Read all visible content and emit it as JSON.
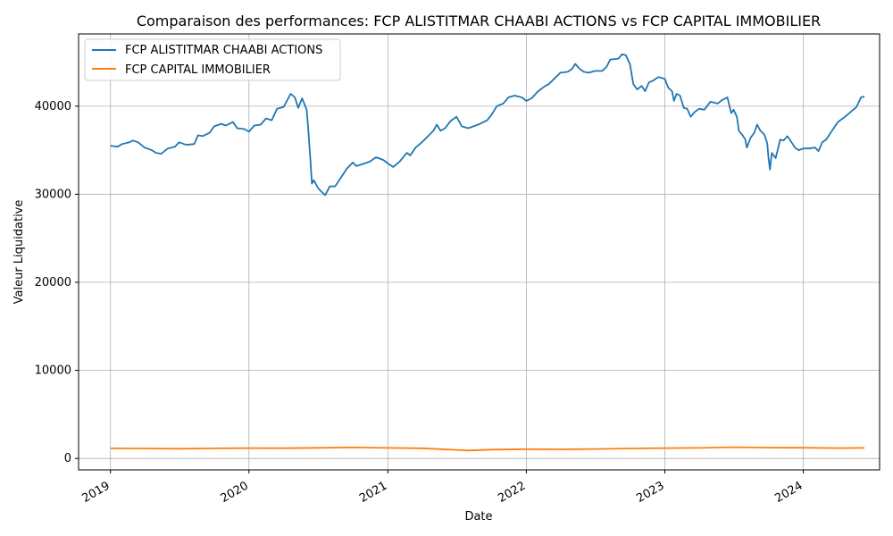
{
  "chart_data": {
    "type": "line",
    "title": "Comparaison des performances: FCP ALISTITMAR CHAABI ACTIONS vs FCP CAPITAL IMMOBILIER",
    "xlabel": "Date",
    "ylabel": "Valeur Liquidative",
    "xlim": [
      "2018-10-09",
      "2024-07-20"
    ],
    "ylim": [
      -1300,
      48200
    ],
    "x_ticks": [
      "2019",
      "2020",
      "2021",
      "2022",
      "2023",
      "2024"
    ],
    "y_ticks": [
      0,
      10000,
      20000,
      30000,
      40000
    ],
    "grid": true,
    "legend_position": "top-left",
    "series": [
      {
        "name": "FCP ALISTITMAR CHAABI ACTIONS",
        "color": "#1f77b4",
        "points": [
          [
            "2019-01-01",
            35500
          ],
          [
            "2019-01-20",
            35400
          ],
          [
            "2019-02-01",
            35700
          ],
          [
            "2019-02-20",
            35900
          ],
          [
            "2019-03-01",
            36100
          ],
          [
            "2019-03-15",
            35900
          ],
          [
            "2019-04-01",
            35300
          ],
          [
            "2019-04-20",
            35000
          ],
          [
            "2019-05-01",
            34700
          ],
          [
            "2019-05-15",
            34600
          ],
          [
            "2019-06-01",
            35200
          ],
          [
            "2019-06-20",
            35400
          ],
          [
            "2019-07-01",
            35900
          ],
          [
            "2019-07-20",
            35600
          ],
          [
            "2019-08-10",
            35700
          ],
          [
            "2019-08-20",
            36700
          ],
          [
            "2019-09-01",
            36600
          ],
          [
            "2019-09-20",
            37000
          ],
          [
            "2019-10-01",
            37700
          ],
          [
            "2019-10-20",
            38000
          ],
          [
            "2019-11-01",
            37800
          ],
          [
            "2019-11-20",
            38200
          ],
          [
            "2019-12-01",
            37500
          ],
          [
            "2019-12-20",
            37400
          ],
          [
            "2020-01-01",
            37100
          ],
          [
            "2020-01-15",
            37800
          ],
          [
            "2020-02-01",
            37900
          ],
          [
            "2020-02-15",
            38600
          ],
          [
            "2020-03-01",
            38400
          ],
          [
            "2020-03-15",
            39700
          ],
          [
            "2020-04-01",
            39900
          ],
          [
            "2020-04-10",
            40600
          ],
          [
            "2020-04-20",
            41400
          ],
          [
            "2020-05-01",
            41000
          ],
          [
            "2020-05-10",
            39800
          ],
          [
            "2020-05-20",
            40900
          ],
          [
            "2020-06-01",
            39600
          ],
          [
            "2020-06-05",
            37500
          ],
          [
            "2020-06-10",
            34500
          ],
          [
            "2020-06-15",
            31200
          ],
          [
            "2020-06-20",
            31600
          ],
          [
            "2020-07-01",
            30700
          ],
          [
            "2020-07-10",
            30300
          ],
          [
            "2020-07-20",
            29900
          ],
          [
            "2020-08-01",
            30900
          ],
          [
            "2020-08-15",
            30900
          ],
          [
            "2020-09-01",
            32000
          ],
          [
            "2020-09-15",
            32900
          ],
          [
            "2020-10-01",
            33600
          ],
          [
            "2020-10-10",
            33200
          ],
          [
            "2020-11-01",
            33500
          ],
          [
            "2020-11-15",
            33700
          ],
          [
            "2020-12-01",
            34200
          ],
          [
            "2020-12-20",
            33900
          ],
          [
            "2021-01-01",
            33500
          ],
          [
            "2021-01-15",
            33100
          ],
          [
            "2021-02-01",
            33700
          ],
          [
            "2021-02-20",
            34700
          ],
          [
            "2021-03-01",
            34400
          ],
          [
            "2021-03-15",
            35300
          ],
          [
            "2021-04-01",
            35900
          ],
          [
            "2021-04-15",
            36500
          ],
          [
            "2021-05-01",
            37200
          ],
          [
            "2021-05-10",
            37900
          ],
          [
            "2021-05-20",
            37200
          ],
          [
            "2021-06-01",
            37500
          ],
          [
            "2021-06-15",
            38300
          ],
          [
            "2021-07-01",
            38800
          ],
          [
            "2021-07-15",
            37700
          ],
          [
            "2021-08-01",
            37500
          ],
          [
            "2021-08-20",
            37800
          ],
          [
            "2021-09-01",
            38000
          ],
          [
            "2021-09-20",
            38400
          ],
          [
            "2021-10-01",
            39000
          ],
          [
            "2021-10-15",
            40000
          ],
          [
            "2021-11-01",
            40300
          ],
          [
            "2021-11-15",
            41000
          ],
          [
            "2021-12-01",
            41200
          ],
          [
            "2021-12-20",
            41000
          ],
          [
            "2022-01-01",
            40600
          ],
          [
            "2022-01-15",
            40900
          ],
          [
            "2022-02-01",
            41700
          ],
          [
            "2022-02-20",
            42300
          ],
          [
            "2022-03-01",
            42500
          ],
          [
            "2022-03-20",
            43300
          ],
          [
            "2022-04-01",
            43800
          ],
          [
            "2022-04-20",
            43900
          ],
          [
            "2022-05-01",
            44200
          ],
          [
            "2022-05-10",
            44800
          ],
          [
            "2022-05-20",
            44300
          ],
          [
            "2022-06-01",
            43900
          ],
          [
            "2022-06-15",
            43800
          ],
          [
            "2022-07-01",
            44000
          ],
          [
            "2022-07-20",
            44000
          ],
          [
            "2022-08-01",
            44500
          ],
          [
            "2022-08-10",
            45300
          ],
          [
            "2022-09-01",
            45400
          ],
          [
            "2022-09-10",
            45900
          ],
          [
            "2022-09-20",
            45800
          ],
          [
            "2022-10-01",
            44800
          ],
          [
            "2022-10-10",
            42500
          ],
          [
            "2022-10-20",
            41900
          ],
          [
            "2022-11-01",
            42300
          ],
          [
            "2022-11-10",
            41700
          ],
          [
            "2022-11-20",
            42700
          ],
          [
            "2022-12-01",
            42900
          ],
          [
            "2022-12-15",
            43300
          ],
          [
            "2023-01-01",
            43100
          ],
          [
            "2023-01-10",
            42100
          ],
          [
            "2023-01-20",
            41700
          ],
          [
            "2023-01-25",
            40600
          ],
          [
            "2023-02-01",
            41400
          ],
          [
            "2023-02-10",
            41200
          ],
          [
            "2023-02-20",
            39800
          ],
          [
            "2023-03-01",
            39700
          ],
          [
            "2023-03-10",
            38800
          ],
          [
            "2023-03-20",
            39300
          ],
          [
            "2023-04-01",
            39700
          ],
          [
            "2023-04-15",
            39600
          ],
          [
            "2023-05-01",
            40500
          ],
          [
            "2023-05-20",
            40300
          ],
          [
            "2023-06-01",
            40700
          ],
          [
            "2023-06-15",
            41000
          ],
          [
            "2023-06-20",
            40100
          ],
          [
            "2023-06-25",
            39200
          ],
          [
            "2023-07-01",
            39600
          ],
          [
            "2023-07-10",
            38800
          ],
          [
            "2023-07-15",
            37200
          ],
          [
            "2023-07-25",
            36700
          ],
          [
            "2023-08-01",
            36200
          ],
          [
            "2023-08-05",
            35300
          ],
          [
            "2023-08-15",
            36400
          ],
          [
            "2023-08-25",
            37000
          ],
          [
            "2023-09-01",
            37900
          ],
          [
            "2023-09-10",
            37200
          ],
          [
            "2023-09-20",
            36800
          ],
          [
            "2023-09-28",
            35800
          ],
          [
            "2023-10-01",
            34200
          ],
          [
            "2023-10-05",
            32800
          ],
          [
            "2023-10-10",
            34700
          ],
          [
            "2023-10-20",
            34100
          ],
          [
            "2023-11-01",
            36200
          ],
          [
            "2023-11-10",
            36100
          ],
          [
            "2023-11-20",
            36600
          ],
          [
            "2023-12-01",
            35900
          ],
          [
            "2023-12-10",
            35300
          ],
          [
            "2023-12-20",
            35000
          ],
          [
            "2024-01-01",
            35200
          ],
          [
            "2024-01-15",
            35200
          ],
          [
            "2024-02-01",
            35300
          ],
          [
            "2024-02-10",
            34900
          ],
          [
            "2024-02-20",
            35900
          ],
          [
            "2024-03-01",
            36200
          ],
          [
            "2024-03-15",
            37100
          ],
          [
            "2024-04-01",
            38200
          ],
          [
            "2024-04-20",
            38800
          ],
          [
            "2024-05-01",
            39200
          ],
          [
            "2024-05-20",
            39900
          ],
          [
            "2024-06-01",
            41000
          ],
          [
            "2024-06-10",
            41100
          ]
        ]
      },
      {
        "name": "FCP CAPITAL IMMOBILIER",
        "color": "#ff7f0e",
        "points": [
          [
            "2019-01-01",
            1140
          ],
          [
            "2019-04-01",
            1130
          ],
          [
            "2019-07-01",
            1100
          ],
          [
            "2019-10-01",
            1140
          ],
          [
            "2020-01-01",
            1180
          ],
          [
            "2020-04-01",
            1160
          ],
          [
            "2020-07-01",
            1210
          ],
          [
            "2020-10-01",
            1250
          ],
          [
            "2021-01-01",
            1200
          ],
          [
            "2021-04-01",
            1150
          ],
          [
            "2021-06-15",
            1000
          ],
          [
            "2021-08-01",
            900
          ],
          [
            "2021-10-01",
            1000
          ],
          [
            "2022-01-01",
            1050
          ],
          [
            "2022-04-01",
            1030
          ],
          [
            "2022-07-01",
            1070
          ],
          [
            "2022-10-01",
            1130
          ],
          [
            "2023-01-01",
            1180
          ],
          [
            "2023-04-01",
            1200
          ],
          [
            "2023-07-01",
            1280
          ],
          [
            "2023-10-01",
            1230
          ],
          [
            "2024-01-01",
            1220
          ],
          [
            "2024-04-01",
            1180
          ],
          [
            "2024-06-10",
            1200
          ]
        ]
      }
    ]
  }
}
